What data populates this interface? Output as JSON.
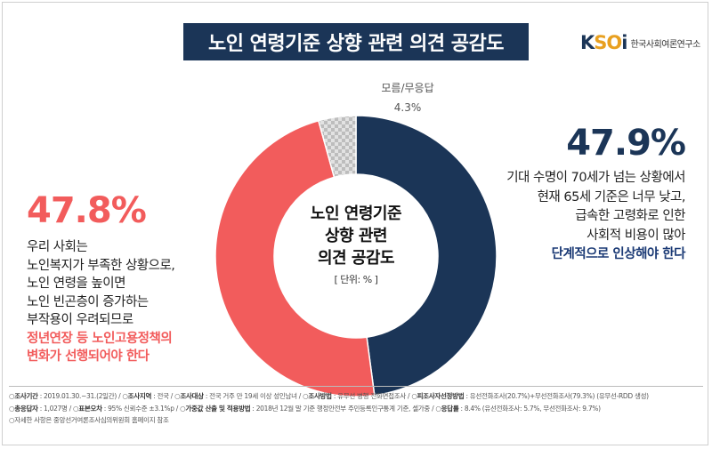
{
  "header": {
    "title": "노인 연령기준 상향 관련 의견 공감도",
    "logo_mark_k": "K",
    "logo_mark_so": "SO",
    "logo_mark_i": "i",
    "logo_text": "한국사회여론연구소"
  },
  "chart_data": {
    "type": "pie",
    "variant": "donut",
    "title": "노인 연령기준 상향 관련 의견 공감도",
    "center_label": [
      "노인 연령기준",
      "상향 관련",
      "의견 공감도"
    ],
    "unit": "[ 단위: % ]",
    "slices": [
      {
        "name": "단계적으로 인상해야 한다",
        "value": 47.9,
        "color": "#1b3557"
      },
      {
        "name": "정년연장 등 노인고용정책의 변화가 선행되어야 한다",
        "value": 47.8,
        "color": "#f25c5c"
      },
      {
        "name": "모름/무응답",
        "value": 4.3,
        "color": "#c8c8c8"
      }
    ]
  },
  "right_annotation": {
    "pct": "47.9%",
    "lines": [
      "기대 수명이 70세가 넘는 상황에서",
      "현재 65세 기준은 너무 낮고,",
      "급속한 고령화로 인한",
      "사회적 비용이 많아"
    ],
    "highlight": "단계적으로 인상해야 한다"
  },
  "left_annotation": {
    "pct": "47.8%",
    "lines": [
      "우리 사회는",
      "노인복지가 부족한 상황으로,",
      "노인 연령을 높이면",
      "노인 빈곤층이 증가하는",
      "부작용이 우려되므로"
    ],
    "highlight": [
      "정년연장 등 노인고용정책의",
      "변화가 선행되어야 한다"
    ]
  },
  "unknown_annotation": {
    "label": "모름/무응답",
    "pct": "4.3%"
  },
  "footer": {
    "row1": [
      {
        "k": "조사기간",
        "v": " : 2019.01.30.~31.(2일간)  /  "
      },
      {
        "k": "조사지역",
        "v": " : 전국  /  "
      },
      {
        "k": "조사대상",
        "v": " : 전국 거주 만 19세 이상 성인남녀  /  "
      },
      {
        "k": "조사방법",
        "v": " : 유무선 병행 전화면접조사  /  "
      },
      {
        "k": "피조사자선정방법",
        "v": " : 유선전화조사(20.7%)+무선전화조사(79.3%) (유무선-RDD 생성)"
      }
    ],
    "row2": [
      {
        "k": "총응답자",
        "v": " : 1,027명  /  "
      },
      {
        "k": "표본오차",
        "v": " : 95% 신뢰수준 ±3.1%p  /  "
      },
      {
        "k": "가중값 산출 및 적용방법",
        "v": " : 2018년 12월 말 기준 행정안전부 주민등록인구통계 기준, 셀가중  /  "
      },
      {
        "k": "응답률",
        "v": " : 8.4% (유선전화조사: 5.7%, 무선전화조사: 9.7%)"
      }
    ],
    "row3": "자세한 사항은 중앙선거여론조사심의위원회 홈페이지 참조"
  }
}
